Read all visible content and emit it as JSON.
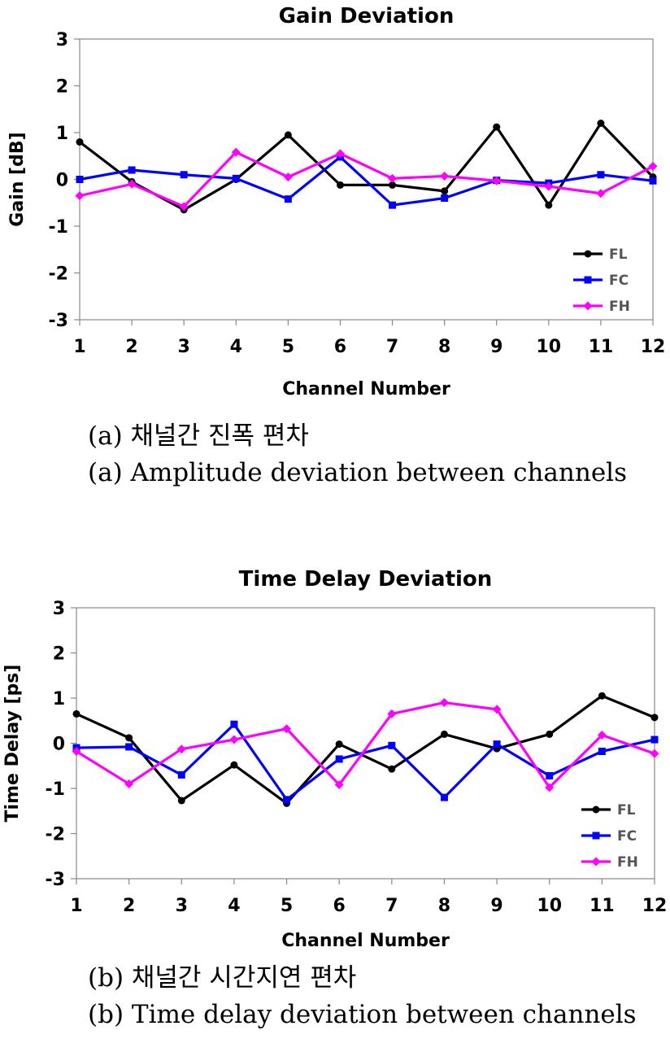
{
  "chart_data": [
    {
      "type": "line",
      "title": "Gain Deviation",
      "xlabel": "Channel Number",
      "ylabel": "Gain [dB]",
      "x": [
        1,
        2,
        3,
        4,
        5,
        6,
        7,
        8,
        9,
        10,
        11,
        12
      ],
      "xlim": [
        1,
        12
      ],
      "ylim": [
        -3,
        3
      ],
      "yticks": [
        3,
        2,
        1,
        0,
        -1,
        -2,
        -3
      ],
      "legend_position": "bottom-right",
      "grid": false,
      "series": [
        {
          "name": "FL",
          "color": "#000000",
          "marker": "circle",
          "values": [
            0.8,
            -0.05,
            -0.65,
            0.0,
            0.95,
            -0.12,
            -0.12,
            -0.25,
            1.12,
            -0.55,
            1.2,
            0.05
          ]
        },
        {
          "name": "FC",
          "color": "#0000ff",
          "marker": "square",
          "values": [
            0.0,
            0.2,
            0.1,
            0.02,
            -0.42,
            0.48,
            -0.55,
            -0.4,
            -0.02,
            -0.08,
            0.1,
            -0.03
          ]
        },
        {
          "name": "FH",
          "color": "#ff00ff",
          "marker": "diamond",
          "values": [
            -0.35,
            -0.1,
            -0.58,
            0.58,
            0.05,
            0.55,
            0.02,
            0.07,
            -0.03,
            -0.15,
            -0.3,
            0.28
          ]
        }
      ]
    },
    {
      "type": "line",
      "title": "Time Delay Deviation",
      "xlabel": "Channel Number",
      "ylabel": "Time Delay [ps]",
      "x": [
        1,
        2,
        3,
        4,
        5,
        6,
        7,
        8,
        9,
        10,
        11,
        12
      ],
      "xlim": [
        1,
        12
      ],
      "ylim": [
        -3,
        3
      ],
      "yticks": [
        3,
        2,
        1,
        0,
        -1,
        -2,
        -3
      ],
      "legend_position": "bottom-right",
      "grid": false,
      "series": [
        {
          "name": "FL",
          "color": "#000000",
          "marker": "circle",
          "values": [
            0.65,
            0.12,
            -1.27,
            -0.48,
            -1.33,
            -0.02,
            -0.57,
            0.2,
            -0.12,
            0.2,
            1.05,
            0.57
          ]
        },
        {
          "name": "FC",
          "color": "#0000ff",
          "marker": "square",
          "values": [
            -0.1,
            -0.08,
            -0.7,
            0.42,
            -1.25,
            -0.35,
            -0.05,
            -1.2,
            -0.02,
            -0.72,
            -0.18,
            0.08
          ]
        },
        {
          "name": "FH",
          "color": "#ff00ff",
          "marker": "diamond",
          "values": [
            -0.18,
            -0.9,
            -0.13,
            0.08,
            0.32,
            -0.92,
            0.65,
            0.9,
            0.75,
            -0.98,
            0.18,
            -0.23
          ]
        }
      ]
    }
  ],
  "captions": {
    "a_korean": "(a) 채널간 진폭 편차",
    "a_english": "(a) Amplitude deviation between channels",
    "b_korean": "(b) 채널간 시간지연 편차",
    "b_english": "(b) Time delay deviation between channels"
  }
}
